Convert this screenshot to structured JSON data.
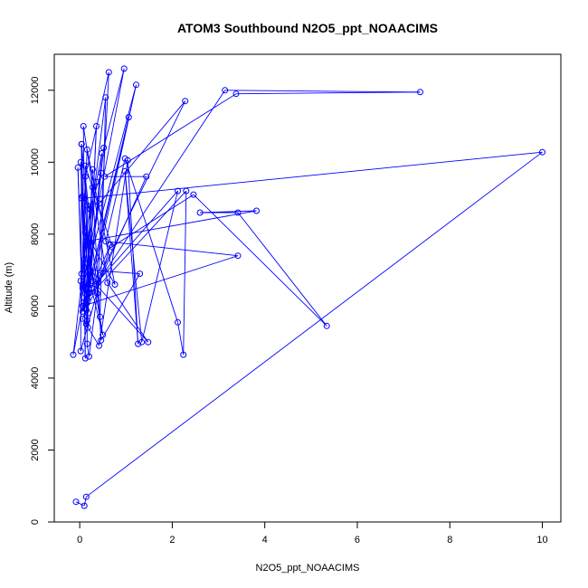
{
  "chart_data": {
    "type": "line",
    "title": "ATOM3 Southbound N2O5_ppt_NOAACIMS",
    "xlabel": "N2O5_ppt_NOAACIMS",
    "ylabel": "Altitude (m)",
    "xlim": [
      -0.55,
      10.4
    ],
    "ylim": [
      0,
      13000
    ],
    "x_ticks": [
      0,
      2,
      4,
      6,
      8,
      10
    ],
    "y_ticks": [
      0,
      2000,
      4000,
      6000,
      8000,
      10000,
      12000
    ],
    "grid": false,
    "legend": "none",
    "color": "#0000ff",
    "series": [
      {
        "points": [
          [
            -0.08,
            560
          ],
          [
            0.1,
            450
          ],
          [
            0.14,
            700
          ],
          [
            10.0,
            10280
          ],
          [
            0.1,
            9000
          ],
          [
            0.24,
            6900
          ],
          [
            0.16,
            5600
          ],
          [
            0.16,
            4950
          ],
          [
            0.2,
            4600
          ],
          [
            0.43,
            6850
          ],
          [
            0.38,
            6350
          ],
          [
            0.63,
            12500
          ],
          [
            0.12,
            9600
          ],
          [
            0.44,
            5700
          ],
          [
            0.56,
            11800
          ],
          [
            0.06,
            6600
          ],
          [
            0.18,
            5800
          ],
          [
            0.36,
            11000
          ],
          [
            0.22,
            6950
          ],
          [
            0.12,
            5950
          ],
          [
            0.28,
            9800
          ],
          [
            0.14,
            5500
          ],
          [
            0.48,
            10250
          ],
          [
            0.36,
            9450
          ],
          [
            0.12,
            6350
          ],
          [
            0.04,
            10500
          ],
          [
            0.16,
            8800
          ],
          [
            0.2,
            6350
          ],
          [
            0.06,
            9050
          ],
          [
            0.22,
            8700
          ],
          [
            0.46,
            9700
          ],
          [
            0.14,
            6050
          ],
          [
            0.22,
            7000
          ],
          [
            1.3,
            6900
          ],
          [
            0.46,
            5050
          ],
          [
            0.28,
            9300
          ],
          [
            0.02,
            6700
          ],
          [
            0.26,
            6500
          ],
          [
            1.22,
            12150
          ],
          [
            0.06,
            6500
          ],
          [
            0.96,
            12600
          ],
          [
            0.52,
            10400
          ],
          [
            0.14,
            5900
          ],
          [
            0.16,
            6200
          ],
          [
            1.06,
            11250
          ],
          [
            0.06,
            5850
          ],
          [
            -0.04,
            9850
          ],
          [
            0.04,
            6900
          ],
          [
            0.16,
            10350
          ],
          [
            0.76,
            6600
          ],
          [
            0.12,
            8050
          ],
          [
            0.5,
            5200
          ],
          [
            0.1,
            7300
          ],
          [
            0.12,
            4550
          ],
          [
            0.04,
            10500
          ],
          [
            0.02,
            4750
          ],
          [
            0.66,
            7700
          ],
          [
            0.16,
            6200
          ],
          [
            3.14,
            12000
          ],
          [
            7.36,
            11950
          ],
          [
            3.38,
            11900
          ],
          [
            0.54,
            9600
          ],
          [
            1.44,
            9600
          ],
          [
            0.06,
            5650
          ],
          [
            0.42,
            4900
          ],
          [
            1.04,
            10050
          ],
          [
            1.26,
            4950
          ],
          [
            0.98,
            9750
          ],
          [
            1.34,
            5000
          ],
          [
            2.12,
            9200
          ],
          [
            0.34,
            6600
          ],
          [
            2.28,
            11700
          ],
          [
            0.42,
            8850
          ],
          [
            0.08,
            6100
          ],
          [
            2.3,
            9200
          ],
          [
            2.24,
            4650
          ],
          [
            2.12,
            5550
          ],
          [
            0.98,
            10100
          ],
          [
            0.56,
            7800
          ],
          [
            3.42,
            7400
          ],
          [
            0.06,
            6000
          ],
          [
            -0.14,
            4650
          ],
          [
            0.14,
            7800
          ],
          [
            3.82,
            8650
          ],
          [
            2.6,
            8600
          ],
          [
            3.42,
            8600
          ],
          [
            5.34,
            5450
          ],
          [
            2.46,
            9100
          ],
          [
            0.7,
            7650
          ],
          [
            0.12,
            9900
          ],
          [
            0.18,
            5400
          ],
          [
            0.12,
            6500
          ],
          [
            0.08,
            11000
          ],
          [
            0.6,
            6650
          ],
          [
            1.48,
            5000
          ],
          [
            0.28,
            6700
          ],
          [
            0.04,
            9000
          ],
          [
            0.12,
            6500
          ],
          [
            0.02,
            10000
          ]
        ]
      }
    ]
  }
}
